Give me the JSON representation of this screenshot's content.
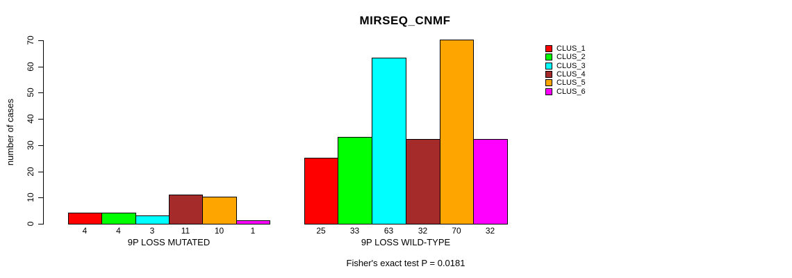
{
  "chart_data": {
    "type": "bar",
    "title": "MIRSEQ_CNMF",
    "ylabel": "number of cases",
    "ylim": [
      0,
      70
    ],
    "yticks": [
      0,
      10,
      20,
      30,
      40,
      50,
      60,
      70
    ],
    "grid": false,
    "legend_position": "right-outside",
    "clusters": [
      "CLUS_1",
      "CLUS_2",
      "CLUS_3",
      "CLUS_4",
      "CLUS_5",
      "CLUS_6"
    ],
    "colors": [
      "#FF0000",
      "#00FF00",
      "#00FFFF",
      "#A52A2A",
      "#FFA500",
      "#FF00FF"
    ],
    "groups": [
      {
        "label": "9P LOSS MUTATED",
        "values": [
          4,
          4,
          3,
          11,
          10,
          1
        ]
      },
      {
        "label": "9P LOSS WILD-TYPE",
        "values": [
          25,
          33,
          63,
          32,
          70,
          32
        ]
      }
    ],
    "annotation": "Fisher's exact test P = 0.0181"
  }
}
